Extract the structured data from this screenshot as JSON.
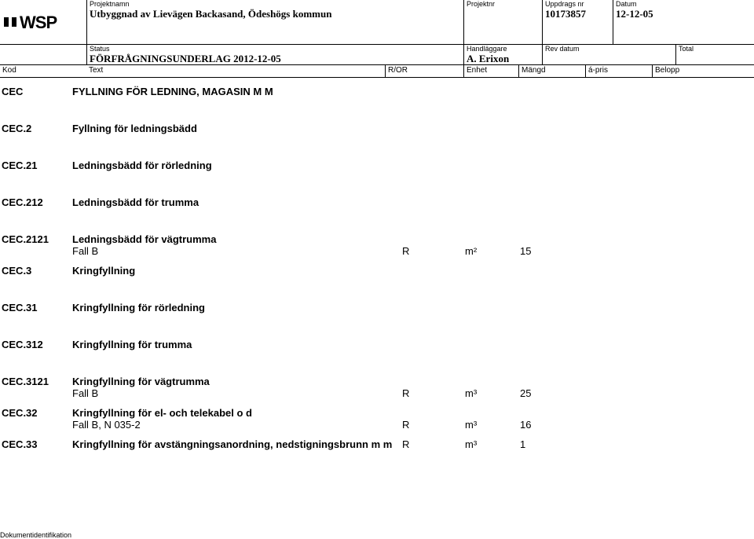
{
  "header": {
    "labels": {
      "projektnamn": "Projektnamn",
      "projektnr": "Projektnr",
      "uppdragsnr": "Uppdrags nr",
      "datum": "Datum",
      "status": "Status",
      "handlaggare": "Handläggare",
      "revdatum": "Rev datum",
      "total": "Total",
      "kod": "Kod",
      "text": "Text",
      "ror": "R/OR",
      "enhet": "Enhet",
      "mangd": "Mängd",
      "apris": "á-pris",
      "belopp": "Belopp"
    },
    "projektnamn": "Utbyggnad av Lievägen Backasand, Ödeshögs kommun",
    "projektnr": "",
    "uppdragsnr": "10173857",
    "datum": "12-12-05",
    "status": "FÖRFRÅGNINGSUNDERLAG  2012-12-05",
    "handlaggare": "A. Erixon",
    "revdatum": "",
    "total": ""
  },
  "rows": [
    {
      "kod": "CEC",
      "text": "FYLLNING FÖR LEDNING, MAGASIN M M",
      "bold": true
    },
    {
      "kod": "CEC.2",
      "text": "Fyllning för ledningsbädd",
      "bold": true
    },
    {
      "kod": "CEC.21",
      "text": "Ledningsbädd för rörledning",
      "bold": true
    },
    {
      "kod": "CEC.212",
      "text": "Ledningsbädd för trumma",
      "bold": true
    },
    {
      "kod": "CEC.2121",
      "text": "Ledningsbädd för vägtrumma",
      "bold": true,
      "line": {
        "desc": "Fall B",
        "ror": "R",
        "enhet": "m²",
        "mangd": "15"
      }
    },
    {
      "kod": "CEC.3",
      "text": "Kringfyllning",
      "bold": true,
      "tight": true
    },
    {
      "kod": "CEC.31",
      "text": "Kringfyllning för rörledning",
      "bold": true
    },
    {
      "kod": "CEC.312",
      "text": "Kringfyllning för trumma",
      "bold": true
    },
    {
      "kod": "CEC.3121",
      "text": "Kringfyllning för vägtrumma",
      "bold": true,
      "line": {
        "desc": "Fall B",
        "ror": "R",
        "enhet": "m³",
        "mangd": "25"
      }
    },
    {
      "kod": "CEC.32",
      "text": "Kringfyllning för el- och telekabel o d",
      "bold": true,
      "tight": true,
      "line": {
        "desc": "Fall B, N 035-2",
        "ror": "R",
        "enhet": "m³",
        "mangd": "16"
      }
    },
    {
      "kod": "CEC.33",
      "text": "Kringfyllning för avstängningsanordning, nedstigningsbrunn m m",
      "bold": true,
      "tight": true,
      "ror": "R",
      "enhet": "m³",
      "mangd": "1"
    }
  ],
  "footer": {
    "dokid": "Dokumentidentifikation"
  },
  "colors": {
    "text": "#000000",
    "border": "#000000",
    "background": "#ffffff"
  }
}
